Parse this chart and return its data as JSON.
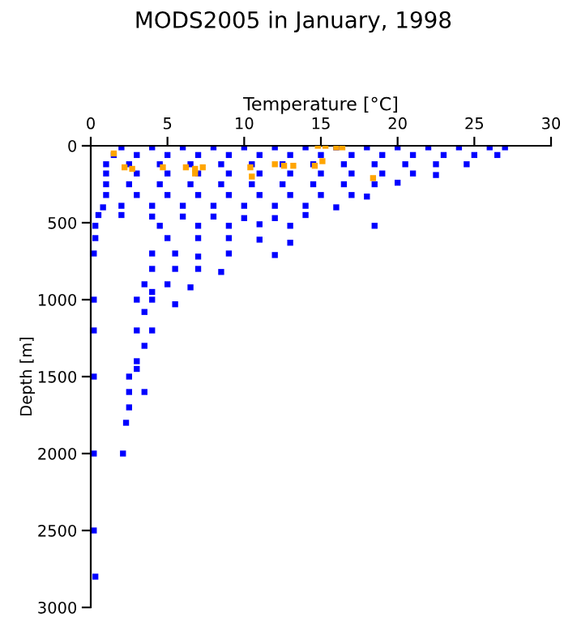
{
  "chart_data": {
    "type": "scatter",
    "title": "MODS2005 in January, 1998",
    "xlabel": "Temperature [°C]",
    "ylabel": "Depth [m]",
    "xlim": [
      0,
      30
    ],
    "xticks": [
      0,
      5,
      10,
      15,
      20,
      25,
      30
    ],
    "ylim": [
      3000,
      0
    ],
    "yticks": [
      0,
      500,
      1000,
      1500,
      2000,
      2500,
      3000
    ],
    "grid": false,
    "legend": false,
    "marker": "square",
    "series": [
      {
        "color": "#0000ff",
        "x": [
          2,
          4,
          6,
          8,
          10,
          12,
          14,
          16,
          18,
          20,
          22,
          24,
          26,
          27,
          1.5,
          3,
          5,
          7,
          9,
          11,
          13,
          15,
          17,
          19,
          21,
          23,
          25,
          26.5,
          1,
          2.5,
          4.5,
          6.5,
          8.5,
          10.5,
          12.5,
          14.5,
          16.5,
          18.5,
          20.5,
          22.5,
          24.5,
          1,
          3,
          5,
          7,
          9,
          11,
          13,
          15,
          17,
          19,
          21,
          22.5,
          1,
          2.5,
          4.5,
          6.5,
          8.5,
          10.5,
          12.5,
          14.5,
          16.5,
          18.5,
          20,
          1,
          3,
          5,
          7,
          9,
          11,
          13,
          15,
          17,
          18,
          0.8,
          2,
          4,
          6,
          8,
          10,
          12,
          14,
          16,
          0.5,
          2,
          4,
          6,
          8,
          10,
          12,
          14,
          0.3,
          4.5,
          7,
          9,
          11,
          13,
          18.5,
          0.3,
          5,
          7,
          9,
          11,
          13,
          4,
          5.5,
          7,
          9,
          12,
          4,
          5.5,
          7,
          8.5,
          3.5,
          5,
          6.5,
          4,
          3,
          4,
          5.5,
          3.5,
          3,
          4,
          3.5,
          3,
          2.5,
          3,
          3.5,
          2.5,
          2.5,
          2.3,
          2.1,
          0.2,
          0.2,
          0.2,
          0.2,
          0.2,
          0.2,
          0.3
        ],
        "values": [
          10,
          10,
          10,
          10,
          10,
          10,
          10,
          10,
          10,
          10,
          10,
          10,
          10,
          10,
          60,
          60,
          60,
          60,
          60,
          60,
          60,
          60,
          60,
          60,
          60,
          60,
          60,
          60,
          120,
          120,
          120,
          120,
          120,
          120,
          120,
          120,
          120,
          120,
          120,
          120,
          120,
          180,
          180,
          180,
          180,
          180,
          180,
          180,
          180,
          180,
          180,
          180,
          190,
          250,
          250,
          250,
          250,
          250,
          250,
          250,
          250,
          250,
          250,
          240,
          320,
          320,
          320,
          320,
          320,
          320,
          320,
          320,
          320,
          330,
          400,
          390,
          390,
          390,
          390,
          390,
          390,
          390,
          400,
          450,
          450,
          460,
          460,
          460,
          470,
          470,
          450,
          520,
          520,
          520,
          520,
          510,
          520,
          520,
          600,
          600,
          600,
          600,
          610,
          630,
          700,
          700,
          720,
          700,
          710,
          800,
          800,
          800,
          820,
          900,
          900,
          920,
          950,
          1000,
          1000,
          1030,
          1080,
          1200,
          1200,
          1300,
          1400,
          1500,
          1450,
          1600,
          1600,
          1700,
          1800,
          2000,
          700,
          1000,
          1200,
          1500,
          2000,
          2500,
          2800
        ]
      },
      {
        "color": "#ffa500",
        "x": [
          1.5,
          2.2,
          2.7,
          4.7,
          6.2,
          6.8,
          7.3,
          6.8,
          10.4,
          10.5,
          12,
          12.6,
          13.2,
          14.6,
          14.8,
          15.3,
          15.1,
          16,
          16.4,
          18.4
        ],
        "values": [
          50,
          140,
          150,
          140,
          140,
          150,
          140,
          180,
          140,
          200,
          120,
          130,
          130,
          130,
          0,
          0,
          100,
          10,
          10,
          210
        ]
      }
    ]
  }
}
